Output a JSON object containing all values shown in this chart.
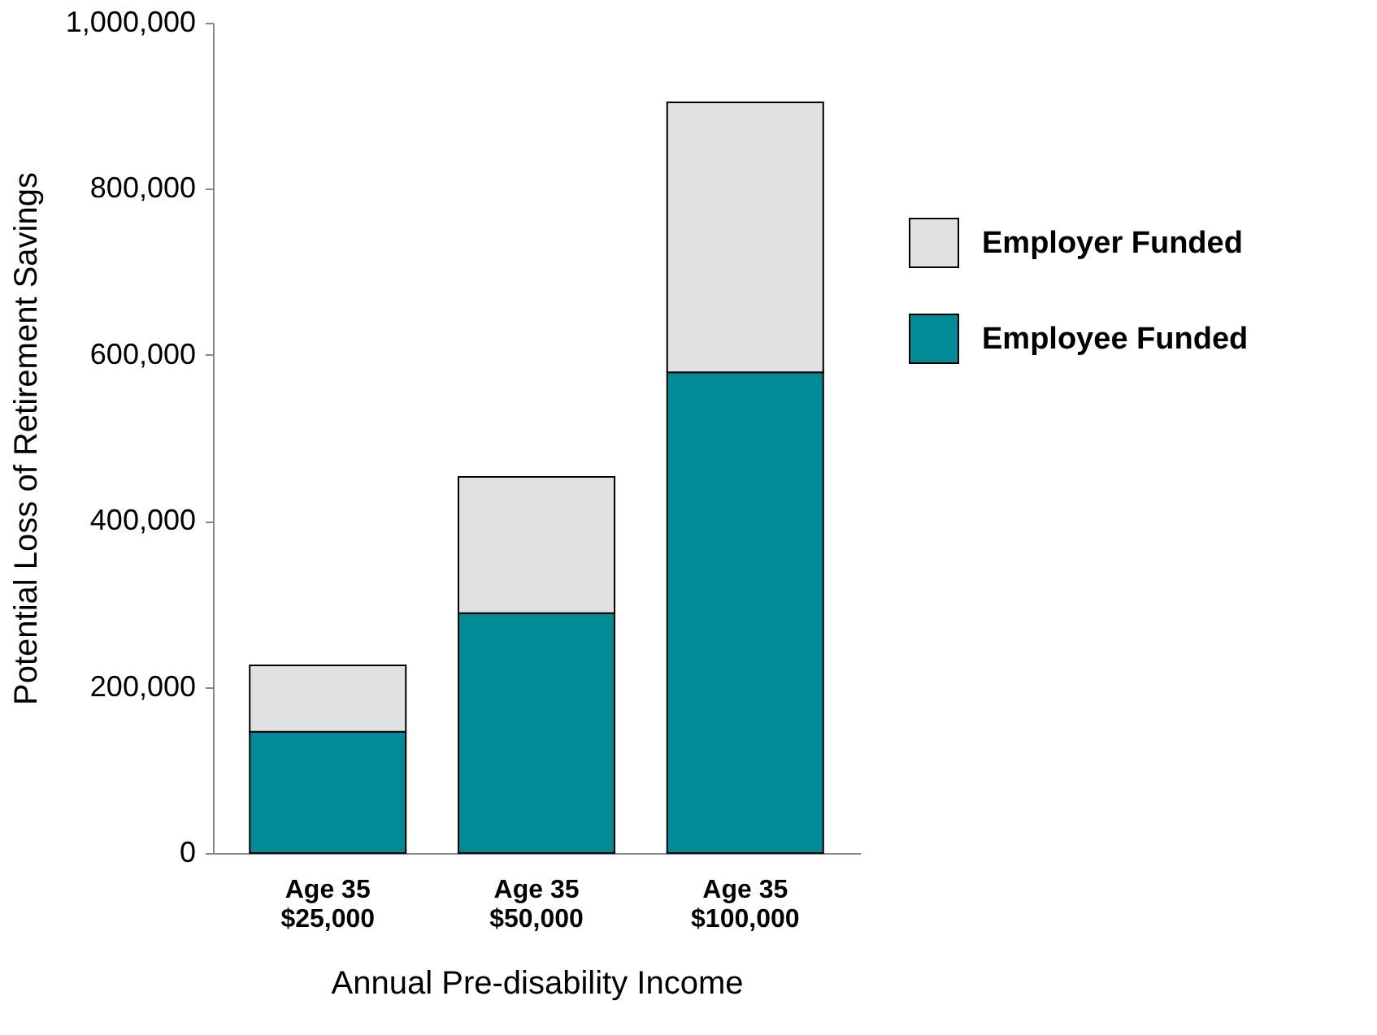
{
  "chart_data": {
    "type": "bar",
    "stacked": true,
    "xlabel": "Annual Pre-disability Income",
    "ylabel": "Potential Loss of Retirement Savings",
    "categories": [
      "Age 35\n$25,000",
      "Age 35\n$50,000",
      "Age 35\n$100,000"
    ],
    "series": [
      {
        "name": "Employee Funded",
        "color": "#008b96",
        "values": [
          146000,
          289000,
          579000
        ]
      },
      {
        "name": "Employer Funded",
        "color": "#e0e1e3",
        "values": [
          80000,
          164000,
          325000
        ]
      }
    ],
    "ylim": [
      0,
      1000000
    ],
    "yticks": [
      0,
      {
        "value": 200000,
        "label": "200,000"
      },
      {
        "value": 400000,
        "label": "400,000"
      },
      {
        "value": 600000,
        "label": "600,000"
      },
      {
        "value": 800000,
        "label": "800,000"
      },
      {
        "value": 1000000,
        "label": "1,000,000"
      }
    ],
    "grid": false,
    "legend": "right"
  }
}
